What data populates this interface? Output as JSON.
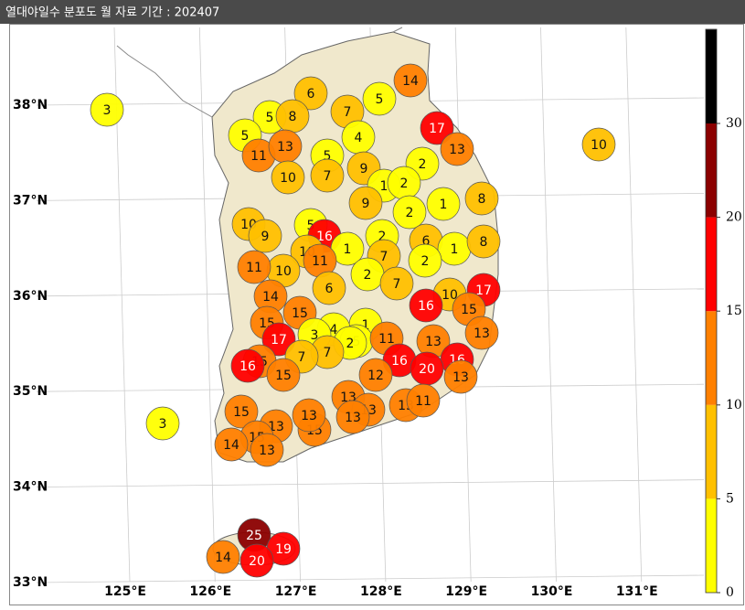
{
  "header": {
    "title": "열대야일수 분포도 월 자료 기간 : 202407"
  },
  "map": {
    "lat_labels": [
      {
        "value": 38,
        "label": "38°N"
      },
      {
        "value": 37,
        "label": "37°N"
      },
      {
        "value": 36,
        "label": "36°N"
      },
      {
        "value": 35,
        "label": "35°N"
      },
      {
        "value": 34,
        "label": "34°N"
      },
      {
        "value": 33,
        "label": "33°N"
      }
    ],
    "lon_labels": [
      {
        "value": 125,
        "label": "125°E"
      },
      {
        "value": 126,
        "label": "126°E"
      },
      {
        "value": 127,
        "label": "127°E"
      },
      {
        "value": 128,
        "label": "128°E"
      },
      {
        "value": 129,
        "label": "129°E"
      },
      {
        "value": 130,
        "label": "130°E"
      },
      {
        "value": 131,
        "label": "131°E"
      }
    ],
    "stations": [
      3,
      6,
      5,
      14,
      7,
      5,
      8,
      5,
      4,
      17,
      13,
      11,
      13,
      5,
      10,
      7,
      9,
      2,
      10,
      1,
      2,
      9,
      2,
      1,
      8,
      10,
      9,
      5,
      16,
      1,
      2,
      6,
      1,
      8,
      7,
      10,
      11,
      2,
      2,
      10,
      11,
      7,
      6,
      14,
      10,
      17,
      16,
      15,
      15,
      15,
      1,
      4,
      3,
      13,
      5,
      2,
      11,
      17,
      13,
      7,
      7,
      15,
      16,
      16,
      16,
      20,
      13,
      12,
      15,
      13,
      11,
      13,
      13,
      13,
      15,
      15,
      13,
      13,
      15,
      14,
      13,
      3,
      25,
      19,
      14,
      20
    ],
    "colorbar": {
      "ticks": [
        0,
        5,
        10,
        15,
        20,
        30
      ],
      "colors": [
        "#ffff00",
        "#ffc000",
        "#ff8000",
        "#ff0000",
        "#8b0000",
        "#000000"
      ]
    }
  }
}
